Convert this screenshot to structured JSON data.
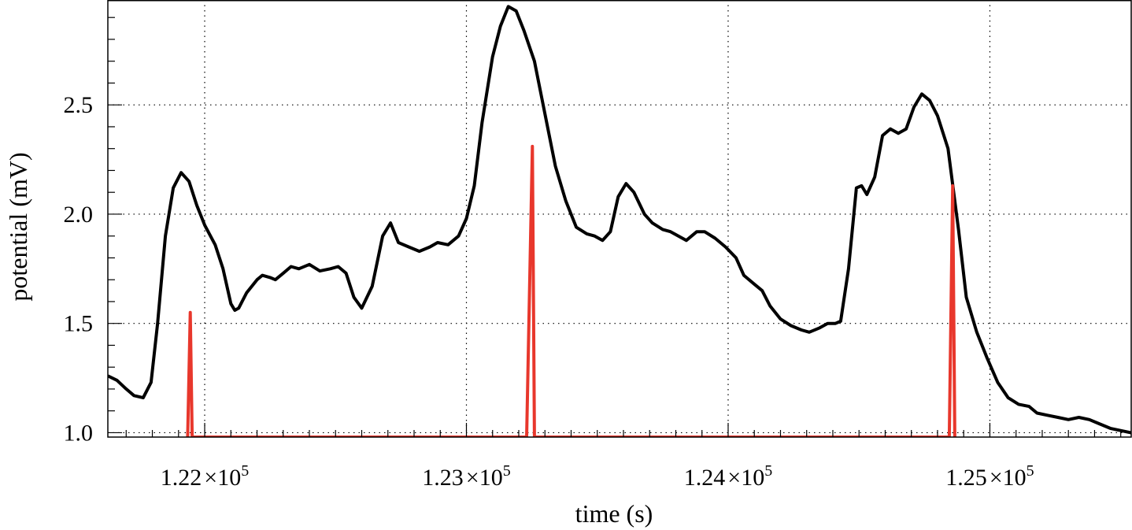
{
  "chart_data": {
    "type": "line",
    "title": "",
    "xlabel": "time (s)",
    "ylabel": "potential (mV)",
    "xlim": [
      121630,
      125540
    ],
    "ylim": [
      0.98,
      2.98
    ],
    "grid": true,
    "x_ticks": [
      {
        "value": 122000,
        "mantissa": "1.22",
        "times": "×",
        "base": "10",
        "exp": "5"
      },
      {
        "value": 123000,
        "mantissa": "1.23",
        "times": "×",
        "base": "10",
        "exp": "5"
      },
      {
        "value": 124000,
        "mantissa": "1.24",
        "times": "×",
        "base": "10",
        "exp": "5"
      },
      {
        "value": 125000,
        "mantissa": "1.25",
        "times": "×",
        "base": "10",
        "exp": "5"
      }
    ],
    "y_ticks": [
      {
        "value": 1.0,
        "label": "1.0"
      },
      {
        "value": 1.5,
        "label": "1.5"
      },
      {
        "value": 2.0,
        "label": "2.0"
      },
      {
        "value": 2.5,
        "label": "2.5"
      }
    ],
    "series": [
      {
        "color": "#000000",
        "points": [
          [
            121630,
            1.26
          ],
          [
            121665,
            1.24
          ],
          [
            121700,
            1.2
          ],
          [
            121730,
            1.17
          ],
          [
            121765,
            1.16
          ],
          [
            121795,
            1.23
          ],
          [
            121820,
            1.5
          ],
          [
            121850,
            1.9
          ],
          [
            121880,
            2.12
          ],
          [
            121910,
            2.19
          ],
          [
            121940,
            2.15
          ],
          [
            121970,
            2.04
          ],
          [
            122000,
            1.95
          ],
          [
            122040,
            1.86
          ],
          [
            122070,
            1.75
          ],
          [
            122100,
            1.59
          ],
          [
            122115,
            1.56
          ],
          [
            122130,
            1.57
          ],
          [
            122160,
            1.64
          ],
          [
            122200,
            1.7
          ],
          [
            122220,
            1.72
          ],
          [
            122250,
            1.71
          ],
          [
            122270,
            1.7
          ],
          [
            122300,
            1.73
          ],
          [
            122330,
            1.76
          ],
          [
            122360,
            1.75
          ],
          [
            122400,
            1.77
          ],
          [
            122440,
            1.74
          ],
          [
            122480,
            1.75
          ],
          [
            122510,
            1.76
          ],
          [
            122540,
            1.73
          ],
          [
            122570,
            1.62
          ],
          [
            122600,
            1.57
          ],
          [
            122640,
            1.67
          ],
          [
            122680,
            1.9
          ],
          [
            122710,
            1.96
          ],
          [
            122740,
            1.87
          ],
          [
            122780,
            1.85
          ],
          [
            122820,
            1.83
          ],
          [
            122860,
            1.85
          ],
          [
            122890,
            1.87
          ],
          [
            122930,
            1.86
          ],
          [
            122970,
            1.9
          ],
          [
            123000,
            1.98
          ],
          [
            123030,
            2.13
          ],
          [
            123060,
            2.42
          ],
          [
            123100,
            2.72
          ],
          [
            123130,
            2.86
          ],
          [
            123160,
            2.95
          ],
          [
            123190,
            2.93
          ],
          [
            123220,
            2.84
          ],
          [
            123260,
            2.7
          ],
          [
            123300,
            2.46
          ],
          [
            123340,
            2.22
          ],
          [
            123380,
            2.06
          ],
          [
            123420,
            1.94
          ],
          [
            123460,
            1.91
          ],
          [
            123490,
            1.9
          ],
          [
            123520,
            1.88
          ],
          [
            123550,
            1.92
          ],
          [
            123580,
            2.08
          ],
          [
            123610,
            2.14
          ],
          [
            123640,
            2.1
          ],
          [
            123680,
            2.0
          ],
          [
            123710,
            1.96
          ],
          [
            123750,
            1.93
          ],
          [
            123780,
            1.92
          ],
          [
            123810,
            1.9
          ],
          [
            123840,
            1.88
          ],
          [
            123880,
            1.92
          ],
          [
            123910,
            1.92
          ],
          [
            123950,
            1.89
          ],
          [
            123990,
            1.85
          ],
          [
            124030,
            1.8
          ],
          [
            124060,
            1.72
          ],
          [
            124100,
            1.68
          ],
          [
            124130,
            1.65
          ],
          [
            124160,
            1.58
          ],
          [
            124200,
            1.52
          ],
          [
            124240,
            1.49
          ],
          [
            124280,
            1.47
          ],
          [
            124310,
            1.46
          ],
          [
            124350,
            1.48
          ],
          [
            124380,
            1.5
          ],
          [
            124410,
            1.5
          ],
          [
            124430,
            1.51
          ],
          [
            124460,
            1.75
          ],
          [
            124490,
            2.12
          ],
          [
            124510,
            2.13
          ],
          [
            124530,
            2.09
          ],
          [
            124560,
            2.17
          ],
          [
            124590,
            2.36
          ],
          [
            124620,
            2.39
          ],
          [
            124650,
            2.37
          ],
          [
            124680,
            2.39
          ],
          [
            124710,
            2.49
          ],
          [
            124740,
            2.55
          ],
          [
            124770,
            2.52
          ],
          [
            124800,
            2.45
          ],
          [
            124840,
            2.3
          ],
          [
            124880,
            1.93
          ],
          [
            124910,
            1.62
          ],
          [
            124950,
            1.46
          ],
          [
            124990,
            1.34
          ],
          [
            125030,
            1.23
          ],
          [
            125070,
            1.16
          ],
          [
            125110,
            1.13
          ],
          [
            125150,
            1.12
          ],
          [
            125180,
            1.09
          ],
          [
            125220,
            1.08
          ],
          [
            125260,
            1.07
          ],
          [
            125300,
            1.06
          ],
          [
            125340,
            1.07
          ],
          [
            125380,
            1.06
          ],
          [
            125420,
            1.04
          ],
          [
            125460,
            1.02
          ],
          [
            125540,
            1.0
          ]
        ]
      },
      {
        "color": "#e8372c",
        "points": [
          [
            121935,
            0.98
          ],
          [
            121945,
            1.55
          ],
          [
            121952,
            0.98
          ],
          [
            121955,
            0.98
          ],
          [
            123230,
            0.98
          ],
          [
            123252,
            2.31
          ],
          [
            123260,
            0.98
          ],
          [
            123262,
            0.98
          ],
          [
            124845,
            0.98
          ],
          [
            124858,
            2.13
          ],
          [
            124866,
            0.98
          ],
          [
            124868,
            0.98
          ]
        ]
      }
    ]
  }
}
